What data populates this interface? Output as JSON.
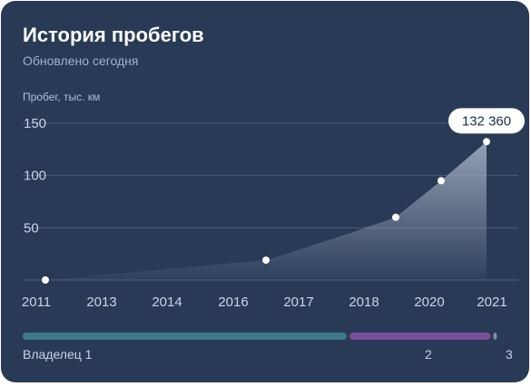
{
  "card": {
    "title": "История пробегов",
    "subtitle": "Обновлено сегодня"
  },
  "chart_data": {
    "type": "area",
    "title": "История пробегов",
    "ylabel": "Пробег, тыс. км",
    "y_ticks": [
      50,
      100,
      150
    ],
    "x_tick_labels": [
      "2011",
      "2013",
      "2014",
      "2016",
      "2017",
      "2018",
      "2020",
      "2021"
    ],
    "points": [
      {
        "x": "2011",
        "y": 0
      },
      {
        "x": "2016",
        "y": 19
      },
      {
        "x": "2019",
        "y": 60
      },
      {
        "x": "2020",
        "y": 95
      },
      {
        "x": "2021",
        "y": 132.36
      }
    ],
    "callout": "132 360",
    "colors": {
      "line": "#ffffff",
      "grid": "#4a5d7a",
      "fill_top": "#9aa8bc"
    }
  },
  "owners": {
    "segments": [
      {
        "label": "Владелец 1",
        "color": "#3d7a8a",
        "share": 0.666
      },
      {
        "label": "2",
        "color": "#7a4f9a",
        "share": 0.29
      },
      {
        "label": "3",
        "color": "#7f8ea6",
        "share": 0.007
      }
    ]
  }
}
